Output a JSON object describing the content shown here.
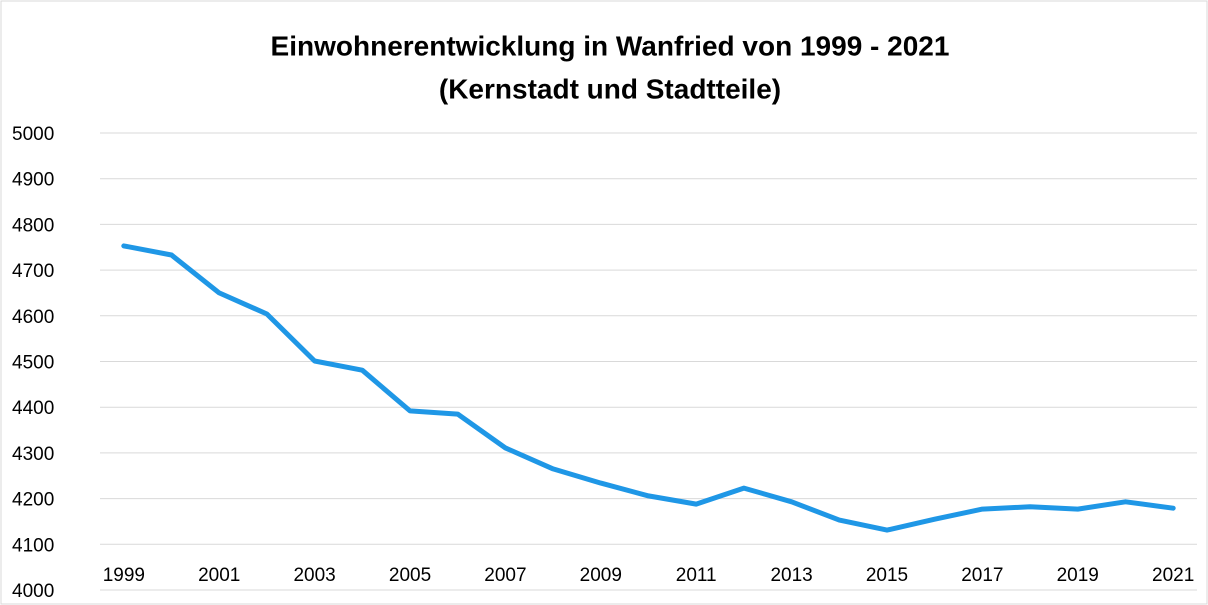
{
  "chart_data": {
    "type": "line",
    "title": "Einwohnerentwicklung in Wanfried von 1999 - 2021",
    "subtitle": "(Kernstadt und Stadtteile)",
    "categories": [
      "1999",
      null,
      "2001",
      null,
      "2003",
      null,
      "2005",
      null,
      "2007",
      null,
      "2009",
      null,
      "2011",
      null,
      "2013",
      null,
      "2015",
      null,
      "2017",
      null,
      "2019",
      null,
      "2021"
    ],
    "series": [
      {
        "name": "Einwohner",
        "color": "#1f97e6",
        "values": [
          4753,
          4733,
          4650,
          4604,
          4501,
          4481,
          4392,
          4385,
          4311,
          4265,
          4234,
          4206,
          4188,
          4223,
          4193,
          4153,
          4131,
          4155,
          4177,
          4182,
          4177,
          4193,
          4179
        ]
      }
    ],
    "ylim": [
      4000,
      5000
    ],
    "yticks": [
      4000,
      4100,
      4200,
      4300,
      4400,
      4500,
      4600,
      4700,
      4800,
      4900,
      5000
    ],
    "grid": true
  }
}
